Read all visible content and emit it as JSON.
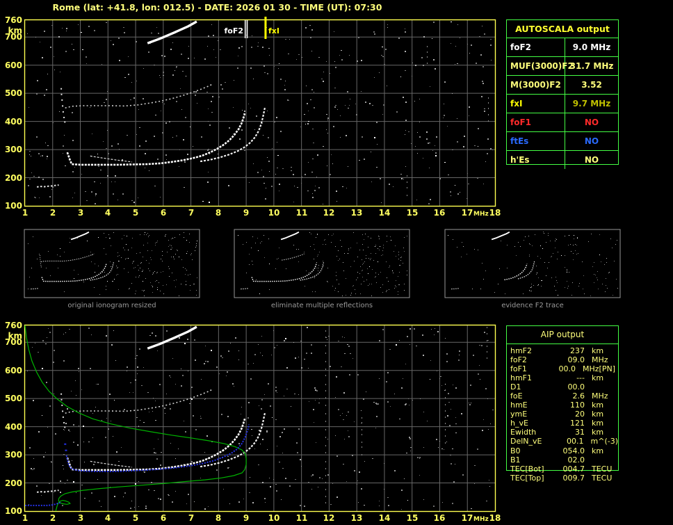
{
  "title": "Rome (lat: +41.8, lon: 012.5) - DATE: 2026 01 30 - TIME (UT): 07:30",
  "colors": {
    "pale_yellow": "#ffff7c",
    "bright_yellow": "#ffff00",
    "olive": "#c0c000",
    "red": "#ff2a2a",
    "blue": "#2a6aff",
    "white": "#ffffff",
    "green_border": "#44ff44",
    "profile_green": "#00b400",
    "trace_blue": "#2633e8",
    "grid": "#676767",
    "axis_yellow": "#ffff50",
    "caption": "#9a9a9a",
    "panel_border": "#999999"
  },
  "top_ionogram": {
    "y_axis": {
      "unit": "km",
      "ticks": [
        760,
        700,
        600,
        500,
        400,
        300,
        200,
        100
      ]
    },
    "x_axis": {
      "unit": "MHz",
      "ticks": [
        1,
        2,
        3,
        4,
        5,
        6,
        7,
        8,
        9,
        10,
        11,
        12,
        13,
        14,
        15,
        16,
        17,
        18
      ]
    },
    "markers": {
      "foF2_label": "foF2",
      "fxI_label": "fxI"
    }
  },
  "bottom_ionogram": {
    "y_axis": {
      "unit": "km",
      "ticks": [
        760,
        700,
        600,
        500,
        400,
        300,
        200,
        100
      ]
    },
    "x_axis": {
      "unit": "MHz",
      "ticks": [
        1,
        2,
        3,
        4,
        5,
        6,
        7,
        8,
        9,
        10,
        11,
        12,
        13,
        14,
        15,
        16,
        17,
        18
      ]
    }
  },
  "panels": [
    {
      "caption": "original ionogram resized"
    },
    {
      "caption": "eliminate multiple reflections"
    },
    {
      "caption": "evidence F2 trace"
    }
  ],
  "autoscala": {
    "header": "AUTOSCALA output",
    "rows": [
      {
        "label": "foF2",
        "value": "9.0 MHz",
        "label_color": "white",
        "value_color": "white"
      },
      {
        "label": "MUF(3000)F2",
        "value": "31.7 MHz",
        "label_color": "pale_yellow",
        "value_color": "pale_yellow"
      },
      {
        "label": "M(3000)F2",
        "value": "3.52",
        "label_color": "pale_yellow",
        "value_color": "pale_yellow"
      },
      {
        "label": "fxI",
        "value": "9.7 MHz",
        "label_color": "bright_yellow",
        "value_color": "olive"
      },
      {
        "label": "foF1",
        "value": "NO",
        "label_color": "red",
        "value_color": "red"
      },
      {
        "label": "ftEs",
        "value": "NO",
        "label_color": "blue",
        "value_color": "blue"
      },
      {
        "label": "h'Es",
        "value": "NO",
        "label_color": "pale_yellow",
        "value_color": "pale_yellow"
      }
    ]
  },
  "aip": {
    "header": "AIP output",
    "rows": [
      {
        "label": "hmF2",
        "value": "237",
        "unit": "km",
        "note": ""
      },
      {
        "label": "foF2",
        "value": "09.0",
        "unit": "MHz",
        "note": ""
      },
      {
        "label": "foF1",
        "value": "00.0",
        "unit": "MHz",
        "note": "[PN]"
      },
      {
        "label": "hmF1",
        "value": "---",
        "unit": "km",
        "note": ""
      },
      {
        "label": "D1",
        "value": "00.0",
        "unit": "",
        "note": ""
      },
      {
        "label": "foE",
        "value": "2.6",
        "unit": "MHz",
        "note": ""
      },
      {
        "label": "hmE",
        "value": "110",
        "unit": "km",
        "note": ""
      },
      {
        "label": "ymE",
        "value": "20",
        "unit": "km",
        "note": ""
      },
      {
        "label": "h_vE",
        "value": "121",
        "unit": "km",
        "note": ""
      },
      {
        "label": "Ewidth",
        "value": "31",
        "unit": "km",
        "note": ""
      },
      {
        "label": "DelN_vE",
        "value": "00.1",
        "unit": "m^(-3)",
        "note": ""
      },
      {
        "label": "B0",
        "value": "054.0",
        "unit": "km",
        "note": ""
      },
      {
        "label": "B1",
        "value": "02.0",
        "unit": "",
        "note": ""
      },
      {
        "label": "TEC[Bot]",
        "value": "004.7",
        "unit": "TECU",
        "note": ""
      },
      {
        "label": "TEC[Top]",
        "value": "009.7",
        "unit": "TECU",
        "note": ""
      }
    ]
  },
  "chart_data": [
    {
      "type": "scatter",
      "title": "top ionogram (scaled echoes)",
      "xlabel": "MHz",
      "ylabel": "km",
      "xlim": [
        1,
        18
      ],
      "ylim": [
        100,
        760
      ],
      "grid": true,
      "annotations": {
        "foF2_MHz": 9.0,
        "fxI_MHz": 9.7
      },
      "series": [
        {
          "name": "E-region echoes",
          "points": [
            [
              1.43,
              167
            ],
            [
              1.55,
              169
            ],
            [
              1.7,
              168
            ],
            [
              1.85,
              170
            ],
            [
              2.0,
              171
            ],
            [
              2.12,
              173
            ],
            [
              2.22,
              174
            ]
          ]
        },
        {
          "name": "F2 ordinary trace",
          "points": [
            [
              2.53,
              290
            ],
            [
              2.58,
              276
            ],
            [
              2.63,
              262
            ],
            [
              2.69,
              248
            ],
            [
              3.0,
              246
            ],
            [
              3.4,
              246
            ],
            [
              3.9,
              246
            ],
            [
              4.4,
              246
            ],
            [
              4.9,
              247
            ],
            [
              5.4,
              248
            ],
            [
              5.9,
              251
            ],
            [
              6.3,
              256
            ],
            [
              6.7,
              262
            ],
            [
              7.05,
              269
            ],
            [
              7.4,
              278
            ],
            [
              7.7,
              290
            ],
            [
              7.95,
              303
            ],
            [
              8.2,
              318
            ],
            [
              8.4,
              334
            ],
            [
              8.57,
              352
            ],
            [
              8.72,
              372
            ],
            [
              8.83,
              393
            ],
            [
              8.9,
              412
            ],
            [
              8.95,
              428
            ]
          ]
        },
        {
          "name": "F2 extraordinary trace",
          "points": [
            [
              7.34,
              258
            ],
            [
              7.7,
              264
            ],
            [
              8.05,
              272
            ],
            [
              8.4,
              283
            ],
            [
              8.7,
              295
            ],
            [
              8.95,
              309
            ],
            [
              9.15,
              325
            ],
            [
              9.32,
              344
            ],
            [
              9.45,
              366
            ],
            [
              9.54,
              390
            ],
            [
              9.6,
              414
            ],
            [
              9.65,
              437
            ],
            [
              9.68,
              452
            ]
          ]
        },
        {
          "name": "second-hop trace",
          "points": [
            [
              2.45,
              448
            ],
            [
              2.7,
              454
            ],
            [
              3.1,
              456
            ],
            [
              3.6,
              456
            ],
            [
              4.1,
              456
            ],
            [
              4.6,
              455
            ],
            [
              5.1,
              459
            ],
            [
              5.5,
              465
            ],
            [
              5.9,
              472
            ],
            [
              6.3,
              481
            ],
            [
              6.7,
              492
            ],
            [
              7.05,
              503
            ],
            [
              7.35,
              514
            ],
            [
              7.6,
              524
            ],
            [
              7.75,
              531
            ]
          ]
        },
        {
          "name": "second-hop cusp",
          "points": [
            [
              2.31,
              516
            ],
            [
              2.32,
              496
            ],
            [
              2.34,
              476
            ],
            [
              2.36,
              455
            ],
            [
              2.38,
              434
            ],
            [
              2.41,
              414
            ],
            [
              2.44,
              398
            ]
          ]
        },
        {
          "name": "oblique trace",
          "points": [
            [
              5.43,
              678
            ],
            [
              5.9,
              695
            ],
            [
              6.4,
              716
            ],
            [
              6.9,
              738
            ],
            [
              7.21,
              755
            ]
          ]
        },
        {
          "name": "leading edge",
          "points": [
            [
              3.36,
              277
            ],
            [
              3.8,
              270
            ],
            [
              4.3,
              263
            ],
            [
              4.87,
              256
            ]
          ]
        }
      ]
    },
    {
      "type": "scatter",
      "title": "bottom ionogram with AIP profile and restored trace",
      "xlabel": "MHz",
      "ylabel": "km",
      "xlim": [
        1,
        18
      ],
      "ylim": [
        100,
        760
      ],
      "grid": true,
      "series": [
        {
          "name": "electron density profile",
          "points": [
            [
              1.0,
              760
            ],
            [
              1.05,
              718
            ],
            [
              1.13,
              676
            ],
            [
              1.25,
              634
            ],
            [
              1.42,
              594
            ],
            [
              1.62,
              558
            ],
            [
              1.87,
              526
            ],
            [
              2.17,
              498
            ],
            [
              2.52,
              472
            ],
            [
              2.95,
              449
            ],
            [
              3.45,
              428
            ],
            [
              4.1,
              410
            ],
            [
              4.8,
              395
            ],
            [
              5.55,
              382
            ],
            [
              6.3,
              370
            ],
            [
              7.0,
              360
            ],
            [
              7.65,
              350
            ],
            [
              8.2,
              340
            ],
            [
              8.6,
              329
            ],
            [
              8.85,
              317
            ],
            [
              8.97,
              303
            ],
            [
              9.0,
              286
            ],
            [
              9.0,
              266
            ],
            [
              8.95,
              248
            ],
            [
              8.85,
              236
            ],
            [
              8.55,
              226
            ],
            [
              8.1,
              218
            ],
            [
              7.5,
              211
            ],
            [
              6.8,
              205
            ],
            [
              6.0,
              198
            ],
            [
              5.2,
              192
            ],
            [
              4.4,
              186
            ],
            [
              3.7,
              180
            ],
            [
              3.1,
              174
            ],
            [
              2.7,
              168
            ],
            [
              2.45,
              162
            ],
            [
              2.3,
              154
            ],
            [
              2.23,
              146
            ],
            [
              2.21,
              138
            ],
            [
              2.26,
              130
            ],
            [
              2.37,
              126
            ],
            [
              2.52,
              124
            ],
            [
              2.63,
              127
            ],
            [
              2.58,
              132
            ],
            [
              2.47,
              136
            ],
            [
              2.36,
              138
            ],
            [
              2.27,
              135
            ],
            [
              2.2,
              128
            ],
            [
              2.16,
              118
            ],
            [
              2.13,
              107
            ],
            [
              2.11,
              100
            ]
          ]
        },
        {
          "name": "restored trace E",
          "points": [
            [
              1.0,
              120
            ],
            [
              1.4,
              120
            ],
            [
              1.8,
              120
            ],
            [
              2.0,
              122
            ],
            [
              2.15,
              126
            ],
            [
              2.3,
              131
            ]
          ]
        },
        {
          "name": "restored trace F",
          "points": [
            [
              2.5,
              298
            ],
            [
              2.54,
              281
            ],
            [
              2.58,
              266
            ],
            [
              2.65,
              254
            ],
            [
              2.75,
              248
            ],
            [
              2.95,
              244
            ],
            [
              3.25,
              242
            ],
            [
              3.65,
              241
            ],
            [
              4.1,
              241
            ],
            [
              4.55,
              242
            ],
            [
              5.0,
              244
            ],
            [
              5.45,
              246
            ],
            [
              5.9,
              249
            ],
            [
              6.35,
              253
            ],
            [
              6.75,
              258
            ],
            [
              7.15,
              264
            ],
            [
              7.5,
              271
            ],
            [
              7.85,
              280
            ],
            [
              8.15,
              291
            ],
            [
              8.45,
              305
            ],
            [
              8.68,
              321
            ],
            [
              8.85,
              341
            ],
            [
              8.97,
              364
            ],
            [
              9.06,
              390
            ],
            [
              9.1,
              408
            ]
          ]
        },
        {
          "name": "restored trace marks",
          "points": [
            [
              2.47,
              316
            ],
            [
              2.44,
              338
            ]
          ]
        }
      ]
    }
  ]
}
